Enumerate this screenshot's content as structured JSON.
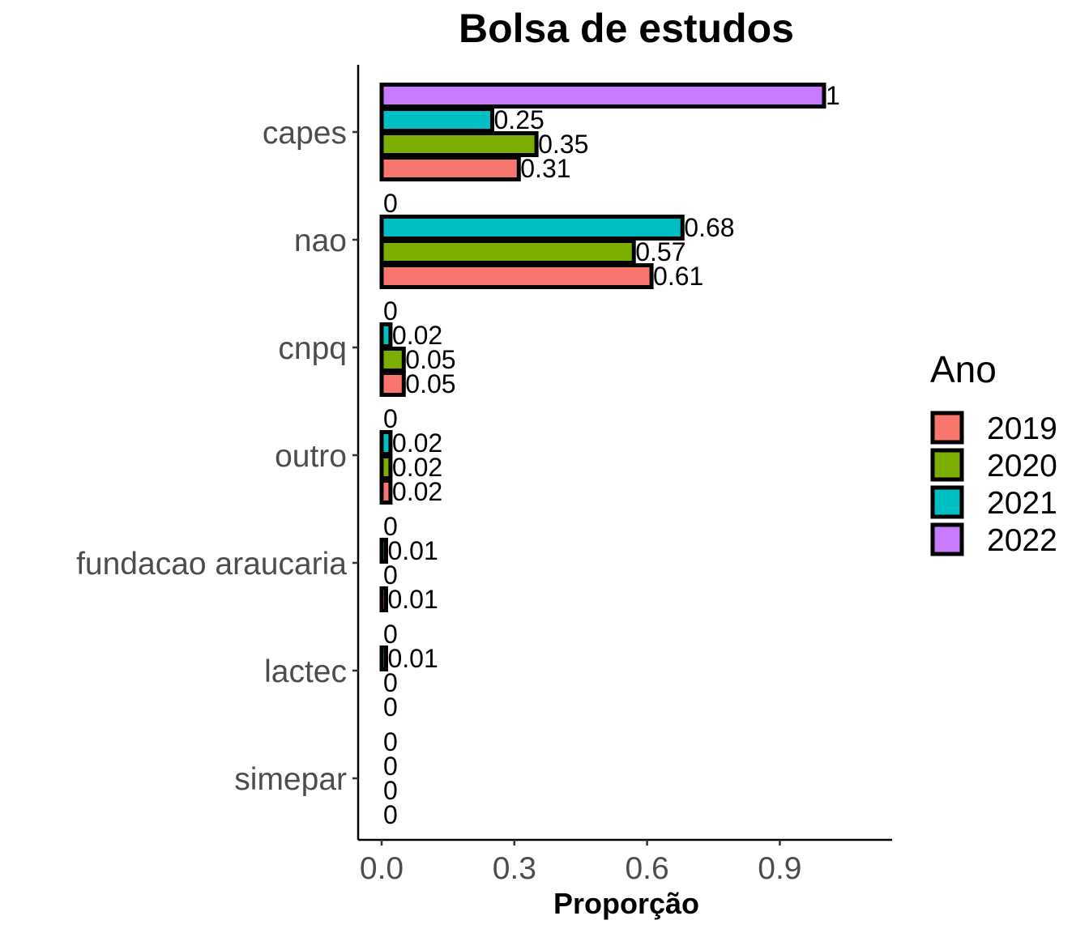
{
  "chart_data": {
    "type": "bar",
    "orientation": "horizontal",
    "title": "Bolsa de estudos",
    "xlabel": "Proporção",
    "ylabel": "",
    "xlim": [
      0,
      1.1
    ],
    "x_ticks": [
      0.0,
      0.3,
      0.6,
      0.9
    ],
    "x_tick_labels": [
      "0.0",
      "0.3",
      "0.6",
      "0.9"
    ],
    "categories": [
      "capes",
      "nao",
      "cnpq",
      "outro",
      "fundacao araucaria",
      "lactec",
      "simepar"
    ],
    "legend": {
      "title": "Ano",
      "position": "right"
    },
    "grid": false,
    "series": [
      {
        "name": "2019",
        "color": "#F8766D",
        "values": [
          0.31,
          0.61,
          0.05,
          0.02,
          0.01,
          0,
          0
        ],
        "labels": [
          "0.31",
          "0.61",
          "0.05",
          "0.02",
          "0.01",
          "0",
          "0"
        ]
      },
      {
        "name": "2020",
        "color": "#7CAE00",
        "values": [
          0.35,
          0.57,
          0.05,
          0.02,
          0,
          0,
          0
        ],
        "labels": [
          "0.35",
          "0.57",
          "0.05",
          "0.02",
          "0",
          "0",
          "0"
        ]
      },
      {
        "name": "2021",
        "color": "#00BFC4",
        "values": [
          0.25,
          0.68,
          0.02,
          0.02,
          0.01,
          0.01,
          0
        ],
        "labels": [
          "0.25",
          "0.68",
          "0.02",
          "0.02",
          "0.01",
          "0.01",
          "0"
        ]
      },
      {
        "name": "2022",
        "color": "#C77CFF",
        "values": [
          1,
          0,
          0,
          0,
          0,
          0,
          0
        ],
        "labels": [
          "1",
          "0",
          "0",
          "0",
          "0",
          "0",
          "0"
        ]
      }
    ]
  }
}
